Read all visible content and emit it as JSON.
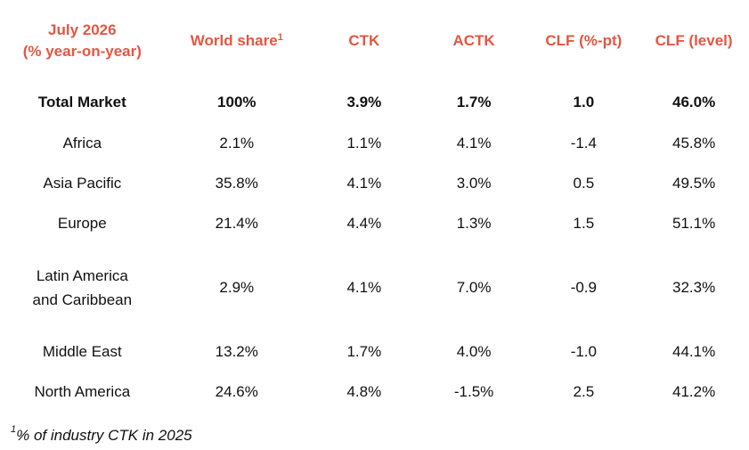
{
  "header": {
    "col0_line1": "July 2026",
    "col0_line2": "(% year-on-year)",
    "world_share": "World share",
    "world_share_note": "1",
    "ctk": "CTK",
    "actk": "ACTK",
    "clf_pt": "CLF (%-pt)",
    "clf_level": "CLF (level)"
  },
  "colors": {
    "header_text": "#e55642",
    "body_text": "#111111"
  },
  "rows": [
    {
      "region": "Total Market",
      "world_share": "100%",
      "ctk": "3.9%",
      "actk": "1.7%",
      "clf_pt": "1.0",
      "clf_level": "46.0%"
    },
    {
      "region": "Africa",
      "world_share": "2.1%",
      "ctk": "1.1%",
      "actk": "4.1%",
      "clf_pt": "-1.4",
      "clf_level": "45.8%"
    },
    {
      "region": "Asia Pacific",
      "world_share": "35.8%",
      "ctk": "4.1%",
      "actk": "3.0%",
      "clf_pt": "0.5",
      "clf_level": "49.5%"
    },
    {
      "region": "Europe",
      "world_share": "21.4%",
      "ctk": "4.4%",
      "actk": "1.3%",
      "clf_pt": "1.5",
      "clf_level": "51.1%"
    },
    {
      "region": "Latin America and Caribbean",
      "world_share": "2.9%",
      "ctk": "4.1%",
      "actk": "7.0%",
      "clf_pt": "-0.9",
      "clf_level": "32.3%"
    },
    {
      "region": "Middle East",
      "world_share": "13.2%",
      "ctk": "1.7%",
      "actk": "4.0%",
      "clf_pt": "-1.0",
      "clf_level": "44.1%"
    },
    {
      "region": "North America",
      "world_share": "24.6%",
      "ctk": "4.8%",
      "actk": "-1.5%",
      "clf_pt": "2.5",
      "clf_level": "41.2%"
    }
  ],
  "footnote": {
    "marker": "1",
    "text": "% of industry CTK in 2025"
  }
}
